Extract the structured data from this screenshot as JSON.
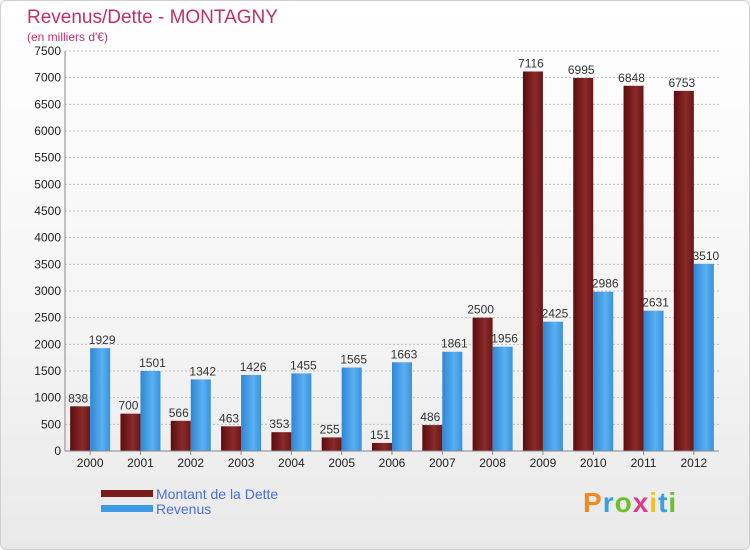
{
  "header": {
    "title": "Revenus/Dette - MONTAGNY",
    "subtitle": "(en milliers d'€)"
  },
  "logo": {
    "text": "Proxiti"
  },
  "colors": {
    "dette": "#7a1c1c",
    "revenus": "#3f9be6",
    "grid": "#bfbfbf"
  },
  "chart_data": {
    "type": "bar",
    "title": "Revenus/Dette - MONTAGNY",
    "subtitle": "(en milliers d'€)",
    "categories": [
      "2000",
      "2001",
      "2002",
      "2003",
      "2004",
      "2005",
      "2006",
      "2007",
      "2008",
      "2009",
      "2010",
      "2011",
      "2012"
    ],
    "series": [
      {
        "name": "Montant de la Dette",
        "values": [
          838,
          700,
          566,
          463,
          353,
          255,
          151,
          486,
          2500,
          7116,
          6995,
          6848,
          6753
        ]
      },
      {
        "name": "Revenus",
        "values": [
          1929,
          1501,
          1342,
          1426,
          1455,
          1565,
          1663,
          1861,
          1956,
          2425,
          2986,
          2631,
          3510
        ]
      }
    ],
    "ylim": [
      0,
      7500
    ],
    "yticks": [
      0,
      500,
      1000,
      1500,
      2000,
      2500,
      3000,
      3500,
      4000,
      4500,
      5000,
      5500,
      6000,
      6500,
      7000,
      7500
    ],
    "grid": true,
    "legend": "bottom-left"
  }
}
